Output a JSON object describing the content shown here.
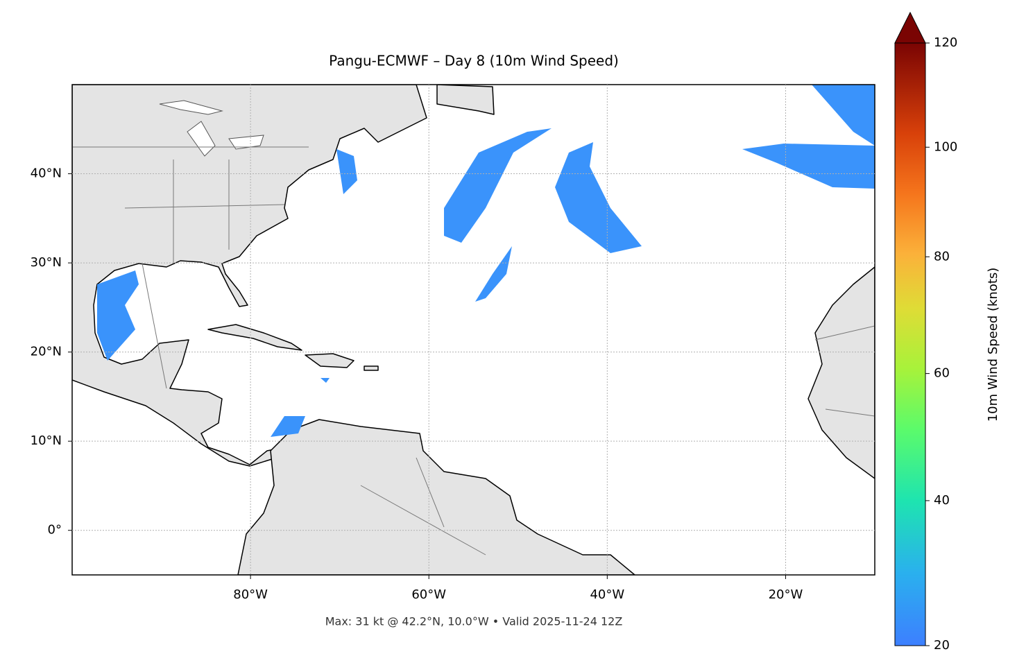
{
  "chart_data": {
    "type": "map",
    "title": "Pangu-ECMWF – Day 8 (10m Wind Speed)",
    "xlim": [
      -100,
      -10
    ],
    "ylim": [
      -5,
      50
    ],
    "xticks": [
      {
        "value": -80,
        "label": "80°W"
      },
      {
        "value": -60,
        "label": "60°W"
      },
      {
        "value": -40,
        "label": "40°W"
      },
      {
        "value": -20,
        "label": "20°W"
      }
    ],
    "yticks": [
      {
        "value": 0,
        "label": "0°"
      },
      {
        "value": 10,
        "label": "10°N"
      },
      {
        "value": 20,
        "label": "20°N"
      },
      {
        "value": 30,
        "label": "30°N"
      },
      {
        "value": 40,
        "label": "40°N"
      }
    ],
    "grid": true,
    "colorbar": {
      "label": "10m Wind Speed (knots)",
      "lim": [
        20,
        120
      ],
      "ticks": [
        20,
        40,
        60,
        80,
        100,
        120
      ],
      "extend": "max"
    },
    "footnote": "Max: 31 kt @ 42.2°N, 10.0°W • Valid 2025-11-24 12Z"
  }
}
